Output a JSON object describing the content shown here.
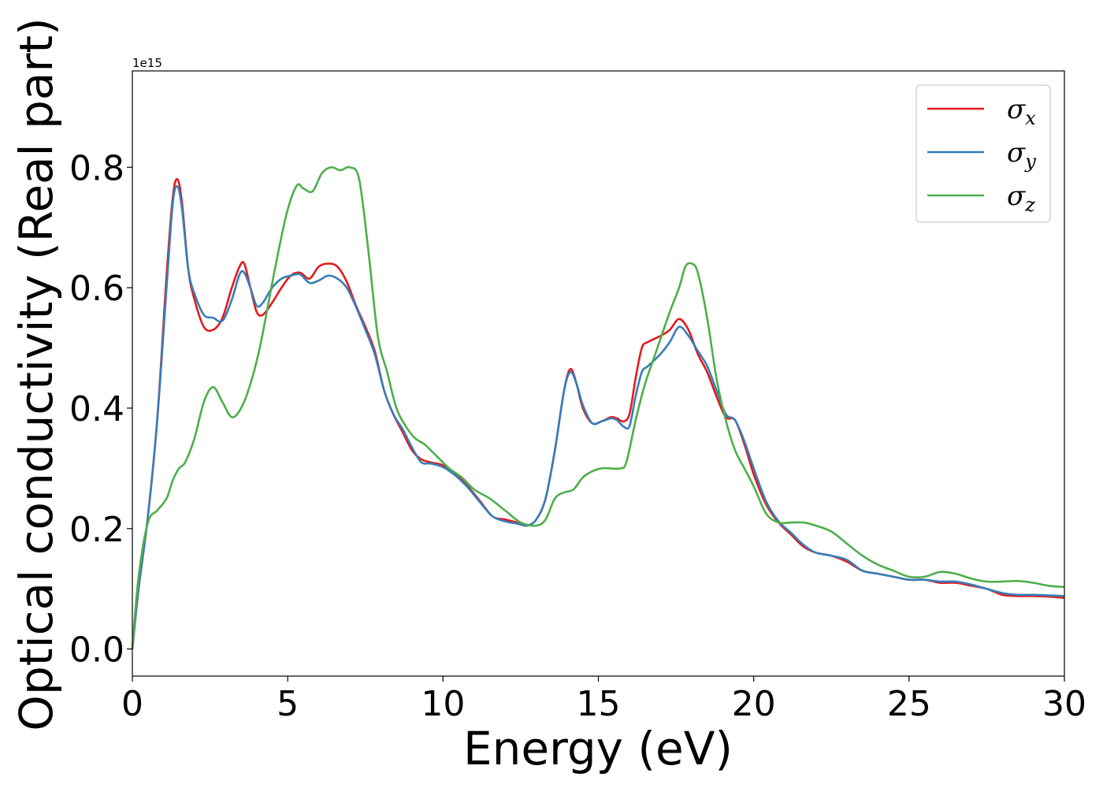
{
  "chart_data": {
    "type": "line",
    "xlabel": "Energy (eV)",
    "ylabel": "Optical conductivity (Real part)",
    "y_offset_label": "1e15",
    "xlim": [
      0,
      30
    ],
    "ylim": [
      -0.045,
      0.96
    ],
    "xticks": [
      0,
      5,
      10,
      15,
      20,
      25,
      30
    ],
    "xtick_labels": [
      "0",
      "5",
      "10",
      "15",
      "20",
      "25",
      "30"
    ],
    "yticks": [
      0.0,
      0.2,
      0.4,
      0.6,
      0.8
    ],
    "ytick_labels": [
      "0.0",
      "0.2",
      "0.4",
      "0.6",
      "0.8"
    ],
    "grid": false,
    "legend_position": "top-right",
    "series": [
      {
        "name": "σ_x",
        "name_base": "σ",
        "name_sub": "x",
        "color": "#e41a1c",
        "x": [
          0,
          0.2,
          0.5,
          0.8,
          1.1,
          1.3,
          1.45,
          1.6,
          1.8,
          2.0,
          2.3,
          2.6,
          2.9,
          3.2,
          3.45,
          3.6,
          3.8,
          4.0,
          4.2,
          4.5,
          4.8,
          5.1,
          5.4,
          5.7,
          6.0,
          6.3,
          6.6,
          6.9,
          7.2,
          7.5,
          7.8,
          8.1,
          8.4,
          8.7,
          9.0,
          9.3,
          9.6,
          10.0,
          10.4,
          10.8,
          11.2,
          11.6,
          12.0,
          12.4,
          12.7,
          13.0,
          13.3,
          13.6,
          13.9,
          14.1,
          14.3,
          14.5,
          14.8,
          15.1,
          15.4,
          15.6,
          15.8,
          16.0,
          16.2,
          16.4,
          16.6,
          17.0,
          17.3,
          17.6,
          17.9,
          18.2,
          18.5,
          18.8,
          19.1,
          19.4,
          19.7,
          20.0,
          20.4,
          20.8,
          21.2,
          21.6,
          22.0,
          22.5,
          23.0,
          23.5,
          24.0,
          24.5,
          25.0,
          25.5,
          26.0,
          26.5,
          27.0,
          27.5,
          28.0,
          28.5,
          29.0,
          29.5,
          30.0
        ],
        "values": [
          0.0,
          0.1,
          0.22,
          0.38,
          0.62,
          0.75,
          0.78,
          0.74,
          0.63,
          0.58,
          0.535,
          0.53,
          0.55,
          0.6,
          0.635,
          0.64,
          0.6,
          0.56,
          0.555,
          0.575,
          0.6,
          0.62,
          0.625,
          0.615,
          0.635,
          0.64,
          0.635,
          0.61,
          0.57,
          0.535,
          0.495,
          0.43,
          0.39,
          0.36,
          0.33,
          0.315,
          0.31,
          0.305,
          0.29,
          0.27,
          0.245,
          0.22,
          0.215,
          0.21,
          0.205,
          0.215,
          0.25,
          0.33,
          0.43,
          0.465,
          0.44,
          0.4,
          0.375,
          0.378,
          0.385,
          0.383,
          0.378,
          0.39,
          0.45,
          0.5,
          0.51,
          0.52,
          0.53,
          0.548,
          0.53,
          0.49,
          0.46,
          0.42,
          0.385,
          0.38,
          0.34,
          0.29,
          0.24,
          0.21,
          0.19,
          0.17,
          0.16,
          0.155,
          0.145,
          0.13,
          0.125,
          0.12,
          0.115,
          0.115,
          0.11,
          0.11,
          0.105,
          0.1,
          0.09,
          0.088,
          0.088,
          0.087,
          0.085
        ]
      },
      {
        "name": "σ_y",
        "name_base": "σ",
        "name_sub": "y",
        "color": "#377eb8",
        "x": [
          0,
          0.2,
          0.5,
          0.8,
          1.1,
          1.3,
          1.45,
          1.6,
          1.8,
          2.0,
          2.3,
          2.6,
          2.9,
          3.2,
          3.45,
          3.6,
          3.8,
          4.0,
          4.2,
          4.5,
          4.8,
          5.1,
          5.4,
          5.7,
          6.0,
          6.3,
          6.6,
          6.9,
          7.2,
          7.5,
          7.8,
          8.1,
          8.4,
          8.7,
          9.0,
          9.3,
          9.6,
          10.0,
          10.4,
          10.8,
          11.2,
          11.6,
          12.0,
          12.4,
          12.7,
          13.0,
          13.3,
          13.6,
          13.9,
          14.1,
          14.3,
          14.5,
          14.8,
          15.1,
          15.4,
          15.6,
          15.8,
          16.0,
          16.2,
          16.4,
          16.6,
          17.0,
          17.3,
          17.6,
          17.9,
          18.2,
          18.5,
          18.8,
          19.1,
          19.4,
          19.7,
          20.0,
          20.4,
          20.8,
          21.2,
          21.6,
          22.0,
          22.5,
          23.0,
          23.5,
          24.0,
          24.5,
          25.0,
          25.5,
          26.0,
          26.5,
          27.0,
          27.5,
          28.0,
          28.5,
          29.0,
          29.5,
          30.0
        ],
        "values": [
          0.0,
          0.1,
          0.22,
          0.38,
          0.6,
          0.74,
          0.768,
          0.73,
          0.63,
          0.59,
          0.555,
          0.55,
          0.545,
          0.58,
          0.622,
          0.625,
          0.6,
          0.57,
          0.575,
          0.6,
          0.615,
          0.62,
          0.622,
          0.608,
          0.612,
          0.62,
          0.615,
          0.6,
          0.568,
          0.53,
          0.49,
          0.43,
          0.39,
          0.365,
          0.335,
          0.31,
          0.308,
          0.302,
          0.288,
          0.268,
          0.243,
          0.22,
          0.212,
          0.208,
          0.205,
          0.215,
          0.25,
          0.33,
          0.43,
          0.46,
          0.44,
          0.405,
          0.375,
          0.378,
          0.383,
          0.38,
          0.37,
          0.37,
          0.42,
          0.46,
          0.47,
          0.49,
          0.51,
          0.535,
          0.52,
          0.495,
          0.47,
          0.43,
          0.39,
          0.38,
          0.345,
          0.3,
          0.245,
          0.212,
          0.193,
          0.173,
          0.16,
          0.155,
          0.148,
          0.13,
          0.125,
          0.12,
          0.115,
          0.115,
          0.112,
          0.112,
          0.107,
          0.1,
          0.093,
          0.09,
          0.09,
          0.089,
          0.088
        ]
      },
      {
        "name": "σ_z",
        "name_base": "σ",
        "name_sub": "z",
        "color": "#4daf4a",
        "x": [
          0,
          0.2,
          0.5,
          0.8,
          1.1,
          1.3,
          1.5,
          1.7,
          2.0,
          2.3,
          2.6,
          2.9,
          3.2,
          3.5,
          3.8,
          4.1,
          4.4,
          4.7,
          5.0,
          5.3,
          5.5,
          5.8,
          6.1,
          6.4,
          6.7,
          7.0,
          7.3,
          7.6,
          7.9,
          8.2,
          8.5,
          8.8,
          9.1,
          9.4,
          9.8,
          10.2,
          10.6,
          11.0,
          11.5,
          12.0,
          12.5,
          13.0,
          13.3,
          13.6,
          13.9,
          14.2,
          14.5,
          14.8,
          15.1,
          15.4,
          15.7,
          15.9,
          16.2,
          16.5,
          16.9,
          17.3,
          17.6,
          17.8,
          18.0,
          18.2,
          18.5,
          18.8,
          19.1,
          19.4,
          19.7,
          20.0,
          20.4,
          20.8,
          21.2,
          21.6,
          22.0,
          22.5,
          23.0,
          23.5,
          24.0,
          24.5,
          25.0,
          25.5,
          26.0,
          26.5,
          27.0,
          27.5,
          28.0,
          28.5,
          29.0,
          29.5,
          30.0
        ],
        "values": [
          0.0,
          0.12,
          0.21,
          0.23,
          0.25,
          0.28,
          0.3,
          0.31,
          0.35,
          0.41,
          0.435,
          0.41,
          0.385,
          0.4,
          0.44,
          0.5,
          0.58,
          0.66,
          0.73,
          0.77,
          0.765,
          0.76,
          0.79,
          0.8,
          0.795,
          0.8,
          0.78,
          0.66,
          0.52,
          0.46,
          0.4,
          0.37,
          0.35,
          0.34,
          0.32,
          0.3,
          0.285,
          0.265,
          0.25,
          0.23,
          0.21,
          0.205,
          0.215,
          0.25,
          0.26,
          0.265,
          0.285,
          0.295,
          0.3,
          0.3,
          0.3,
          0.31,
          0.38,
          0.44,
          0.5,
          0.56,
          0.6,
          0.635,
          0.64,
          0.625,
          0.55,
          0.45,
          0.38,
          0.33,
          0.3,
          0.27,
          0.225,
          0.21,
          0.21,
          0.21,
          0.205,
          0.195,
          0.175,
          0.155,
          0.14,
          0.13,
          0.12,
          0.12,
          0.128,
          0.125,
          0.117,
          0.112,
          0.112,
          0.113,
          0.11,
          0.105,
          0.103
        ]
      }
    ]
  }
}
